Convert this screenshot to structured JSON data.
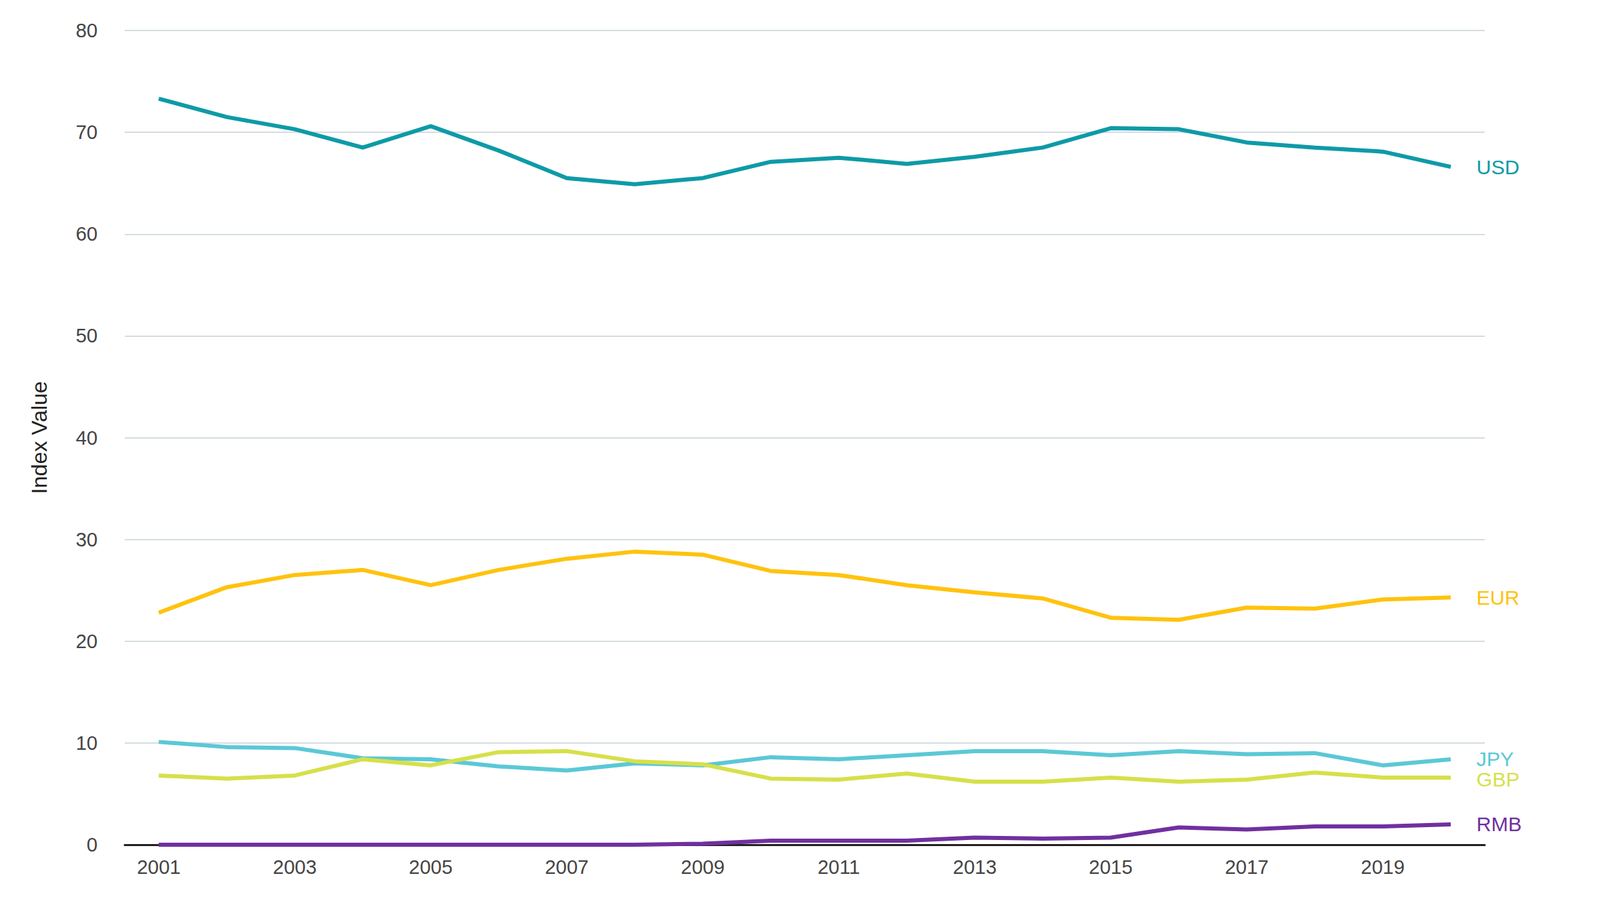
{
  "chart_data": {
    "type": "line",
    "y_label": "Index Value",
    "x": [
      2001,
      2002,
      2003,
      2004,
      2005,
      2006,
      2007,
      2008,
      2009,
      2010,
      2011,
      2012,
      2013,
      2014,
      2015,
      2016,
      2017,
      2018,
      2019,
      2020
    ],
    "series": [
      {
        "name": "USD",
        "color": "#0e9aa7",
        "values": [
          73.3,
          71.5,
          70.3,
          68.5,
          70.6,
          68.2,
          65.5,
          64.9,
          65.5,
          67.1,
          67.5,
          66.9,
          67.6,
          68.5,
          70.4,
          70.3,
          69.0,
          68.5,
          68.1,
          66.6
        ]
      },
      {
        "name": "EUR",
        "color": "#ffc20e",
        "values": [
          22.8,
          25.3,
          26.5,
          27.0,
          25.5,
          27.0,
          28.1,
          28.8,
          28.5,
          26.9,
          26.5,
          25.5,
          24.8,
          24.2,
          22.3,
          22.1,
          23.3,
          23.2,
          24.1,
          24.3
        ]
      },
      {
        "name": "JPY",
        "color": "#5bc8d6",
        "values": [
          10.1,
          9.6,
          9.5,
          8.5,
          8.4,
          7.7,
          7.3,
          8.0,
          7.8,
          8.6,
          8.4,
          8.8,
          9.2,
          9.2,
          8.8,
          9.2,
          8.9,
          9.0,
          7.8,
          8.4
        ]
      },
      {
        "name": "GBP",
        "color": "#d6e04a",
        "values": [
          6.8,
          6.5,
          6.8,
          8.4,
          7.8,
          9.1,
          9.2,
          8.2,
          7.9,
          6.5,
          6.4,
          7.0,
          6.2,
          6.2,
          6.6,
          6.2,
          6.4,
          7.1,
          6.6,
          6.6
        ]
      },
      {
        "name": "RMB",
        "color": "#7030a0",
        "values": [
          0,
          0,
          0,
          0,
          0,
          0,
          0,
          0,
          0.1,
          0.4,
          0.4,
          0.4,
          0.7,
          0.6,
          0.7,
          1.7,
          1.5,
          1.8,
          1.8,
          2.0
        ]
      }
    ],
    "xlim": [
      2000.5,
      2020.5
    ],
    "xticks": [
      2001,
      2003,
      2005,
      2007,
      2009,
      2011,
      2013,
      2015,
      2017,
      2019
    ],
    "ylim": [
      0,
      80
    ],
    "yticks": [
      0,
      10,
      20,
      30,
      40,
      50,
      60,
      70,
      80
    ],
    "grid": true
  }
}
